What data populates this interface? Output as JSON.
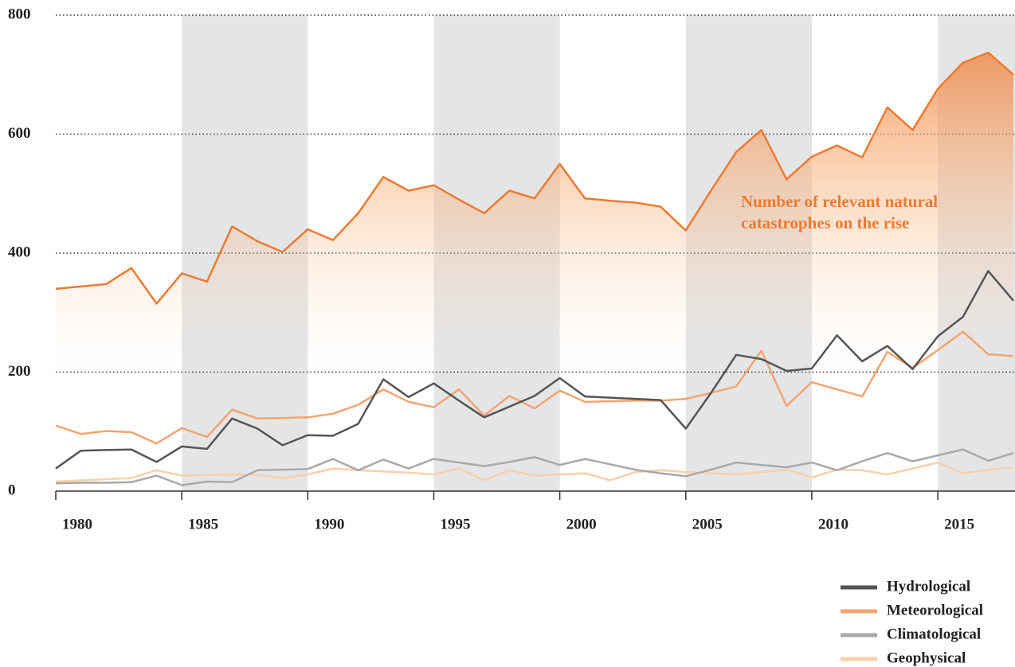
{
  "chart_data": {
    "type": "line",
    "x": [
      1980,
      1981,
      1982,
      1983,
      1984,
      1985,
      1986,
      1987,
      1988,
      1989,
      1990,
      1991,
      1992,
      1993,
      1994,
      1995,
      1996,
      1997,
      1998,
      1999,
      2000,
      2001,
      2002,
      2003,
      2004,
      2005,
      2006,
      2007,
      2008,
      2009,
      2010,
      2011,
      2012,
      2013,
      2014,
      2015,
      2016,
      2017,
      2018
    ],
    "total": {
      "color": "#ee7a30",
      "values": [
        340,
        344,
        348,
        375,
        315,
        366,
        352,
        445,
        420,
        402,
        440,
        422,
        467,
        528,
        505,
        514,
        490,
        467,
        505,
        492,
        550,
        492,
        488,
        485,
        478,
        438,
        505,
        570,
        607,
        524,
        562,
        581,
        561,
        645,
        607,
        676,
        720,
        737,
        700
      ]
    },
    "series": [
      {
        "name": "Hydrological",
        "color": "#555555",
        "values": [
          38,
          68,
          69,
          70,
          49,
          75,
          71,
          122,
          105,
          77,
          94,
          93,
          113,
          188,
          158,
          181,
          152,
          124,
          142,
          160,
          190,
          159,
          157,
          155,
          153,
          105,
          165,
          229,
          222,
          202,
          206,
          262,
          218,
          244,
          205,
          260,
          293,
          370,
          320
        ]
      },
      {
        "name": "Meteorological",
        "color": "#f4a470",
        "values": [
          110,
          96,
          101,
          99,
          80,
          106,
          91,
          137,
          122,
          123,
          124,
          130,
          145,
          171,
          150,
          141,
          171,
          127,
          160,
          139,
          169,
          150,
          151,
          152,
          152,
          155,
          165,
          176,
          236,
          143,
          183,
          171,
          159,
          234,
          207,
          237,
          268,
          230,
          227
        ]
      },
      {
        "name": "Climatological",
        "color": "#a9a9ab",
        "values": [
          13,
          14,
          14,
          15,
          26,
          10,
          16,
          15,
          35,
          36,
          37,
          54,
          35,
          53,
          38,
          54,
          48,
          42,
          49,
          57,
          44,
          54,
          45,
          36,
          30,
          25,
          36,
          48,
          44,
          40,
          48,
          35,
          50,
          64,
          50,
          60,
          70,
          51,
          64
        ]
      },
      {
        "name": "Geophysical",
        "color": "#fbcfa8",
        "values": [
          16,
          18,
          20,
          22,
          35,
          26,
          27,
          28,
          27,
          22,
          28,
          38,
          35,
          33,
          31,
          28,
          38,
          18,
          35,
          26,
          28,
          30,
          18,
          32,
          35,
          32,
          30,
          28,
          32,
          36,
          23,
          36,
          35,
          28,
          38,
          48,
          30,
          36,
          40
        ]
      }
    ],
    "annotation": [
      "Number of relevant natural",
      "catastrophes on the rise"
    ],
    "xlim": [
      1980,
      2018
    ],
    "xticks": [
      1980,
      1985,
      1990,
      1995,
      2000,
      2005,
      2010,
      2015
    ],
    "ylim": [
      0,
      800
    ],
    "yticks": [
      0,
      200,
      400,
      600,
      800
    ],
    "grid": true,
    "shaded_bands": true,
    "legend": "bottom-right"
  }
}
